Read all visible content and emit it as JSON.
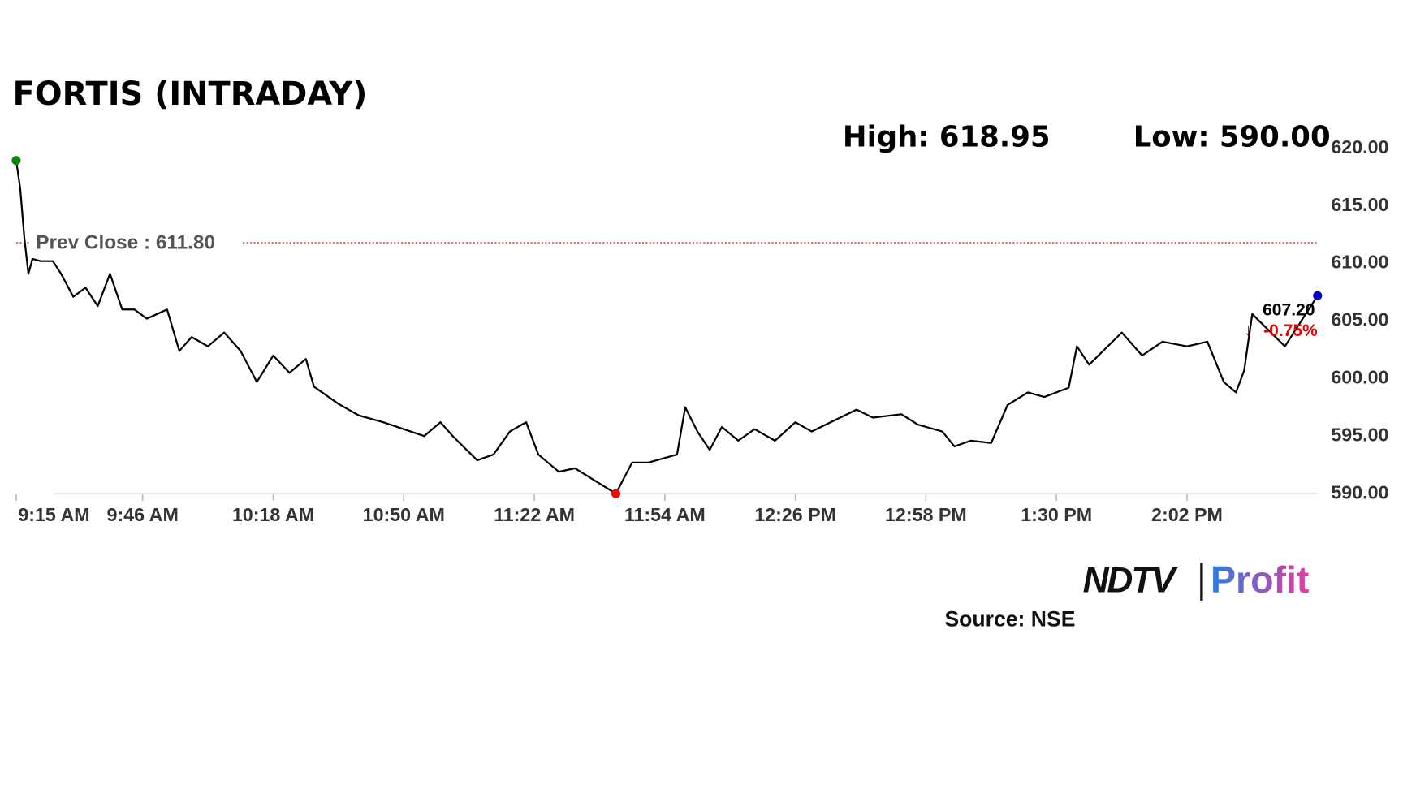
{
  "chart_data": {
    "type": "line",
    "title": "FORTIS (INTRADAY)",
    "high_label": "High: 618.95",
    "low_label": "Low: 590.00",
    "prev_close_label": "Prev Close : 611.80",
    "prev_close": 611.8,
    "last_label": "607.20",
    "change_label": "-0.75%",
    "source": "Source: NSE",
    "logo": {
      "left": "NDTV",
      "right": "Profit"
    },
    "x": [
      555,
      556,
      557,
      558,
      559,
      561,
      564,
      566,
      569,
      572,
      575,
      578,
      581,
      584,
      587,
      592,
      595,
      598,
      602,
      606,
      610,
      614,
      618,
      622,
      626,
      628,
      634,
      639,
      645,
      650,
      655,
      659,
      662,
      668,
      672,
      676,
      680,
      683,
      688,
      692,
      697,
      702,
      706,
      710,
      717,
      719,
      722,
      725,
      728,
      732,
      736,
      741,
      746,
      750,
      761,
      765,
      772,
      776,
      782,
      785,
      789,
      794,
      798,
      803,
      807,
      813,
      815,
      818,
      826,
      831,
      836,
      842,
      847,
      851,
      854,
      856,
      857,
      858,
      866,
      874
    ],
    "series": [
      {
        "color": "#000000",
        "values": [
          618.95,
          616.5,
          612.2,
          609.1,
          610.4,
          610.2,
          610.2,
          609.1,
          607.1,
          607.9,
          606.3,
          609.1,
          606.0,
          606.0,
          605.2,
          606.0,
          602.4,
          603.6,
          602.8,
          604.0,
          602.4,
          599.7,
          602.0,
          600.5,
          601.7,
          599.3,
          597.8,
          596.8,
          596.2,
          595.6,
          595.0,
          596.2,
          595.0,
          592.9,
          593.4,
          595.4,
          596.2,
          593.4,
          591.9,
          592.2,
          591.1,
          590.0,
          592.7,
          592.7,
          593.4,
          597.5,
          595.4,
          593.8,
          595.8,
          594.6,
          595.6,
          594.6,
          596.2,
          595.4,
          597.3,
          596.6,
          596.9,
          596.0,
          595.4,
          594.1,
          594.6,
          594.4,
          597.7,
          598.8,
          598.4,
          599.2,
          602.8,
          601.2,
          604.0,
          602.0,
          603.2,
          602.8,
          603.2,
          599.7,
          598.8,
          600.7,
          603.2,
          605.6,
          602.8,
          607.2
        ]
      }
    ],
    "marker_colors": {
      "first": "#0a8a0a",
      "low": "#ff0000",
      "last": "#0000cc"
    },
    "xlim": [
      555,
      874
    ],
    "ylim": [
      590,
      620
    ],
    "xticks": [
      {
        "value": 555,
        "label": "9:15 AM"
      },
      {
        "value": 586,
        "label": "9:46 AM"
      },
      {
        "value": 618,
        "label": "10:18 AM"
      },
      {
        "value": 650,
        "label": "10:50 AM"
      },
      {
        "value": 682,
        "label": "11:22 AM"
      },
      {
        "value": 714,
        "label": "11:54 AM"
      },
      {
        "value": 746,
        "label": "12:26 PM"
      },
      {
        "value": 778,
        "label": "12:58 PM"
      },
      {
        "value": 810,
        "label": "1:30 PM"
      },
      {
        "value": 842,
        "label": "2:02 PM"
      }
    ],
    "yticks": [
      {
        "value": 620,
        "label": "620.00"
      },
      {
        "value": 615,
        "label": "615.00"
      },
      {
        "value": 610,
        "label": "610.00"
      },
      {
        "value": 605,
        "label": "605.00"
      },
      {
        "value": 600,
        "label": "600.00"
      },
      {
        "value": 595,
        "label": "595.00"
      },
      {
        "value": 590,
        "label": "590.00"
      }
    ]
  }
}
